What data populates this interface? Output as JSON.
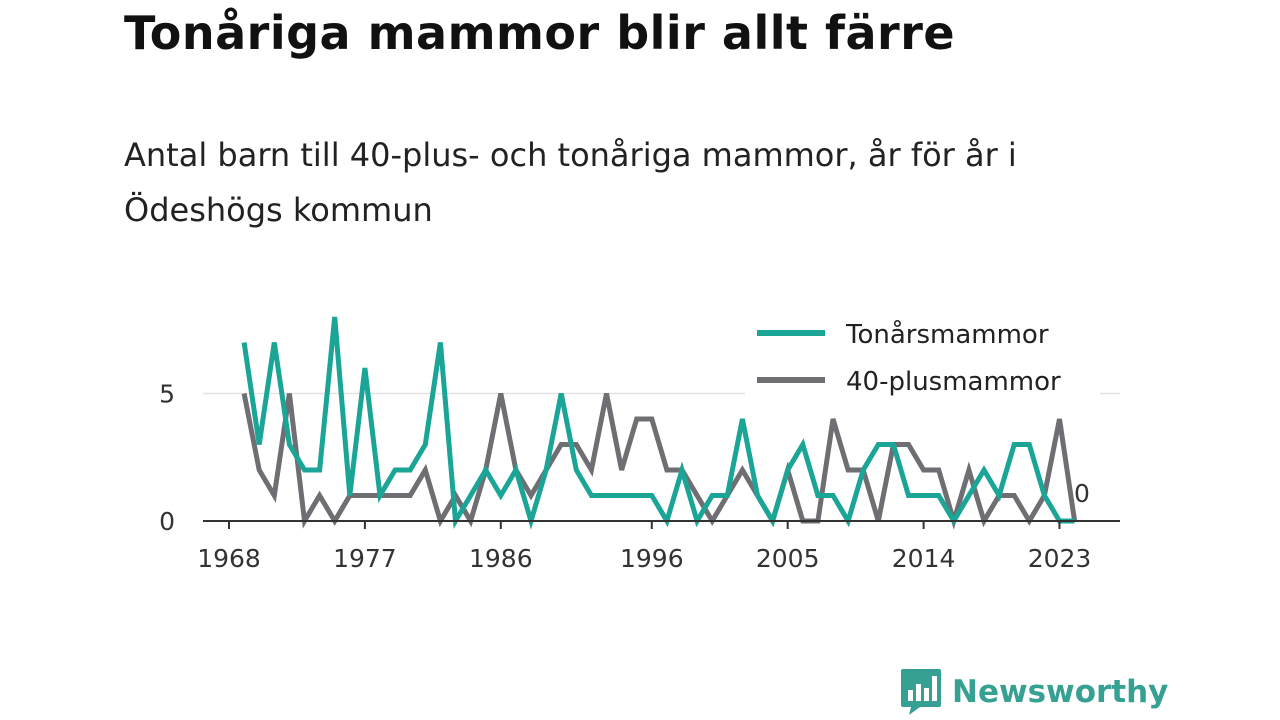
{
  "title": "Tonåriga mammor blir allt färre",
  "subtitle": "Antal barn till 40-plus- och tonåriga mammor, år för år i Ödeshögs kommun",
  "brand": {
    "name": "Newsworthy",
    "color": "#36a192",
    "icon": "bar-chart-speech-bubble-icon"
  },
  "chart_data": {
    "type": "line",
    "x_ticks": [
      "1968",
      "1977",
      "1986",
      "1996",
      "2005",
      "2014",
      "2023"
    ],
    "y_ticks": [
      "0",
      "5"
    ],
    "ylim": [
      0,
      8
    ],
    "grid": "horizontal",
    "legend_position": "top-right",
    "end_label": "0",
    "x": [
      1969,
      1970,
      1971,
      1972,
      1973,
      1974,
      1975,
      1976,
      1977,
      1978,
      1979,
      1980,
      1981,
      1982,
      1983,
      1984,
      1985,
      1986,
      1987,
      1988,
      1989,
      1990,
      1991,
      1992,
      1993,
      1994,
      1995,
      1996,
      1997,
      1998,
      1999,
      2000,
      2001,
      2002,
      2003,
      2004,
      2005,
      2006,
      2007,
      2008,
      2009,
      2010,
      2011,
      2012,
      2013,
      2014,
      2015,
      2016,
      2017,
      2018,
      2019,
      2020,
      2021,
      2022,
      2023,
      2024
    ],
    "series": [
      {
        "name": "Tonårsmammor",
        "color": "#1aa597",
        "values": [
          7,
          3,
          7,
          3,
          2,
          2,
          8,
          1,
          6,
          1,
          2,
          2,
          3,
          7,
          0,
          1,
          2,
          1,
          2,
          0,
          2,
          5,
          2,
          1,
          1,
          1,
          1,
          1,
          0,
          2,
          0,
          1,
          1,
          4,
          1,
          0,
          2,
          3,
          1,
          1,
          0,
          2,
          3,
          3,
          1,
          1,
          1,
          0,
          1,
          2,
          1,
          3,
          3,
          1,
          0,
          0
        ]
      },
      {
        "name": "40-plusmammor",
        "color": "#6e6e73",
        "values": [
          5,
          2,
          1,
          5,
          0,
          1,
          0,
          1,
          1,
          1,
          1,
          1,
          2,
          0,
          1,
          0,
          2,
          5,
          2,
          1,
          2,
          3,
          3,
          2,
          5,
          2,
          4,
          4,
          2,
          2,
          1,
          0,
          1,
          2,
          1,
          0,
          2,
          0,
          0,
          4,
          2,
          2,
          0,
          3,
          3,
          2,
          2,
          0,
          2,
          0,
          1,
          1,
          0,
          1,
          4,
          0
        ]
      }
    ]
  }
}
